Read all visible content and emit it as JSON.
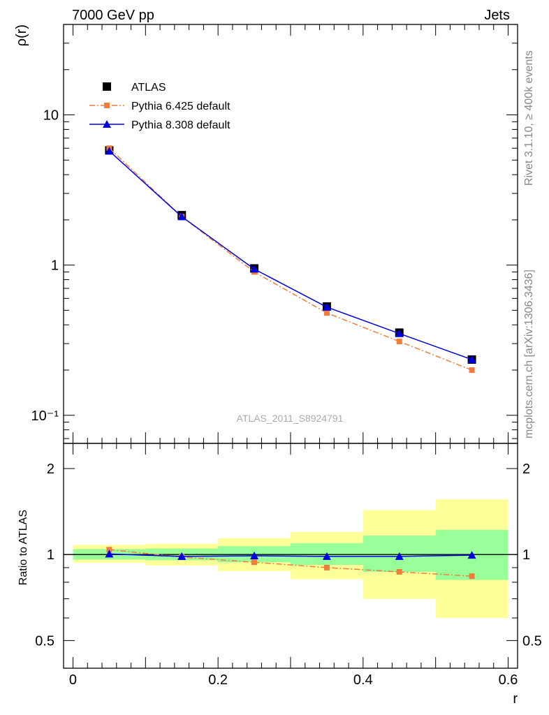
{
  "header": {
    "left": "7000 GeV pp",
    "right": "Jets"
  },
  "side_labels": {
    "rivet": "Rivet 3.1.10, ≥ 400k events",
    "mcplots": "mcplots.cern.ch [arXiv:1306.3436]"
  },
  "analysis_id": "ATLAS_2011_S8924791",
  "chart_data": [
    {
      "type": "line",
      "panel": "main",
      "ylabel": "ρ(r)",
      "yscale": "log",
      "ylim": [
        0.065,
        40
      ],
      "xlim": [
        -0.013,
        0.613
      ],
      "yticks": [
        0.1,
        1,
        10
      ],
      "ytick_labels": [
        "10⁻¹",
        "1",
        "10"
      ],
      "legend": {
        "placement": "top-left",
        "entries": [
          "ATLAS",
          "Pythia 6.425 default",
          "Pythia 8.308 default"
        ]
      },
      "x": [
        0.05,
        0.15,
        0.25,
        0.35,
        0.45,
        0.55
      ],
      "series": [
        {
          "name": "ATLAS",
          "marker": "square",
          "color": "#000000",
          "values": [
            5.8,
            2.15,
            0.95,
            0.53,
            0.355,
            0.235
          ]
        },
        {
          "name": "Pythia 6.425 default",
          "marker": "square",
          "line": "dash-dot",
          "color": "#f07e3a",
          "values": [
            6.0,
            2.1,
            0.9,
            0.48,
            0.31,
            0.2
          ]
        },
        {
          "name": "Pythia 8.308 default",
          "marker": "triangle",
          "line": "solid",
          "color": "#0000e0",
          "values": [
            5.75,
            2.1,
            0.94,
            0.525,
            0.35,
            0.235
          ]
        }
      ]
    },
    {
      "type": "line",
      "panel": "ratio",
      "ylabel": "Ratio to ATLAS",
      "xlabel": "r",
      "yscale": "log",
      "ylim": [
        0.4,
        2.45
      ],
      "xlim": [
        -0.013,
        0.613
      ],
      "yticks": [
        0.5,
        1,
        2
      ],
      "ytick_labels": [
        "0.5",
        "1",
        "2"
      ],
      "xticks": [
        0,
        0.2,
        0.4,
        0.6
      ],
      "xtick_labels": [
        "0",
        "0.2",
        "0.4",
        "0.6"
      ],
      "bands": [
        {
          "x0": 0.0,
          "x1": 0.1,
          "stat_lo": 0.96,
          "stat_hi": 1.045,
          "tot_lo": 0.935,
          "tot_hi": 1.08
        },
        {
          "x0": 0.1,
          "x1": 0.2,
          "stat_lo": 0.955,
          "stat_hi": 1.05,
          "tot_lo": 0.915,
          "tot_hi": 1.09
        },
        {
          "x0": 0.2,
          "x1": 0.3,
          "stat_lo": 0.94,
          "stat_hi": 1.07,
          "tot_lo": 0.875,
          "tot_hi": 1.14
        },
        {
          "x0": 0.3,
          "x1": 0.4,
          "stat_lo": 0.92,
          "stat_hi": 1.095,
          "tot_lo": 0.82,
          "tot_hi": 1.2
        },
        {
          "x0": 0.4,
          "x1": 0.5,
          "stat_lo": 0.87,
          "stat_hi": 1.165,
          "tot_lo": 0.7,
          "tot_hi": 1.43
        },
        {
          "x0": 0.5,
          "x1": 0.6,
          "stat_lo": 0.815,
          "stat_hi": 1.22,
          "tot_lo": 0.6,
          "tot_hi": 1.56
        }
      ],
      "band_colors": {
        "stat": "#99ff99",
        "total": "#ffff99"
      },
      "x": [
        0.05,
        0.15,
        0.25,
        0.35,
        0.45,
        0.55
      ],
      "series": [
        {
          "name": "Pythia 6.425 default",
          "color": "#f07e3a",
          "values": [
            1.04,
            0.98,
            0.94,
            0.9,
            0.87,
            0.84
          ]
        },
        {
          "name": "Pythia 8.308 default",
          "color": "#0000e0",
          "values": [
            1.005,
            0.985,
            0.99,
            0.985,
            0.985,
            0.995
          ]
        }
      ]
    }
  ]
}
